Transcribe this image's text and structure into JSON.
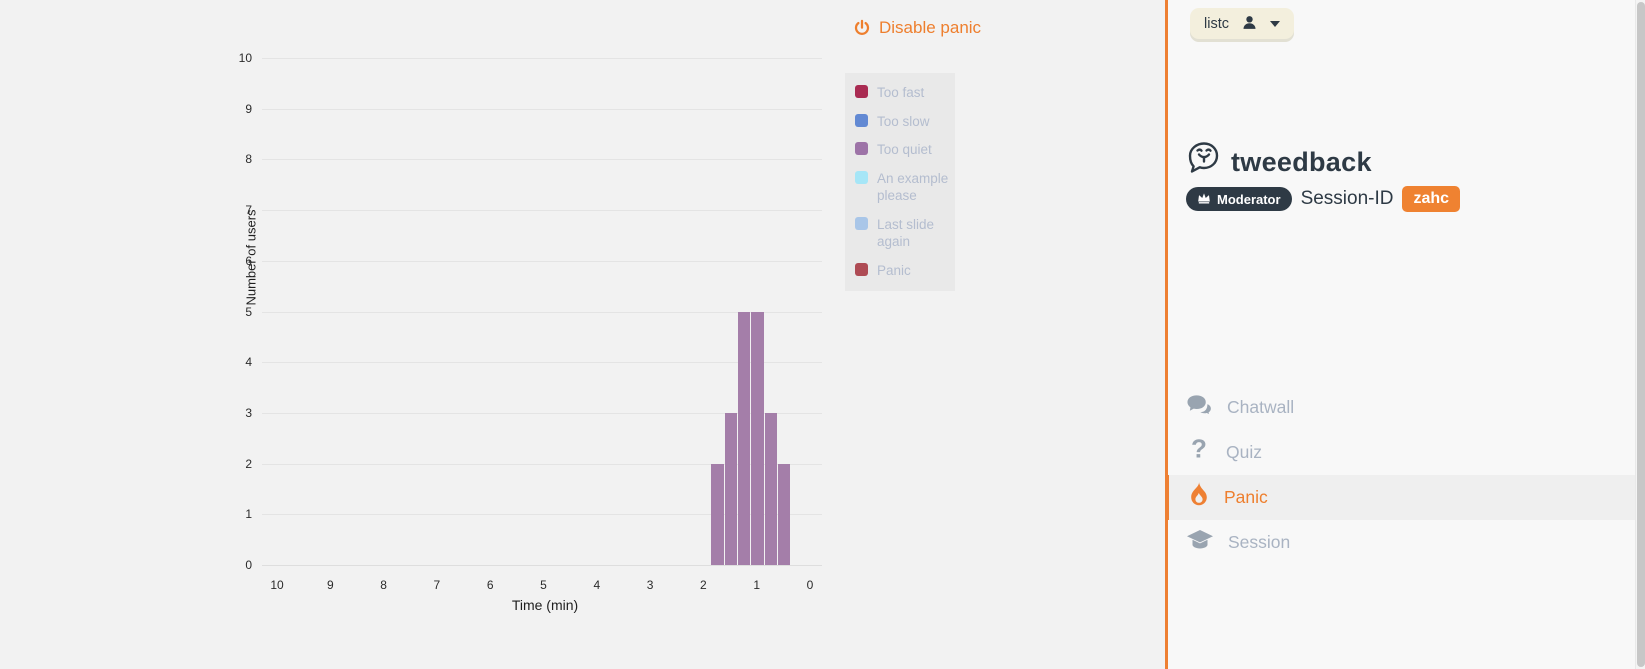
{
  "colors": {
    "accent_orange": "#ee7f2e",
    "badge_orange": "#ef8231",
    "navy": "#2e3a45",
    "bar_purple": "#a47ea9",
    "legend_bg": "#e9e9e9",
    "legend_text": "#b4bdcf",
    "nav_gray": "#a9b3c2",
    "nav_icon_gray": "#99a4b0"
  },
  "toolbar": {
    "disable_panic_label": "Disable panic",
    "icon": "power-icon"
  },
  "chart_data": {
    "type": "bar",
    "title": "",
    "xlabel": "Time (min)",
    "ylabel": "Number of users",
    "x_axis": {
      "min": 0,
      "max": 10,
      "reversed": true,
      "ticks": [
        10,
        9,
        8,
        7,
        6,
        5,
        4,
        3,
        2,
        1,
        0
      ]
    },
    "y_axis": {
      "min": 0,
      "max": 10,
      "ticks": [
        0,
        1,
        2,
        3,
        4,
        5,
        6,
        7,
        8,
        9,
        10
      ]
    },
    "grid": true,
    "legend_position": "right-top",
    "series": [
      {
        "name": "Too quiet",
        "color": "#a47ea9",
        "bars": [
          {
            "t_start": 1.85,
            "t_end": 1.6,
            "value": 2
          },
          {
            "t_start": 1.6,
            "t_end": 1.35,
            "value": 3
          },
          {
            "t_start": 1.35,
            "t_end": 1.1,
            "value": 5
          },
          {
            "t_start": 1.1,
            "t_end": 0.85,
            "value": 5
          },
          {
            "t_start": 0.85,
            "t_end": 0.6,
            "value": 3
          },
          {
            "t_start": 0.6,
            "t_end": 0.35,
            "value": 2
          }
        ]
      }
    ],
    "legend": [
      {
        "label": "Too fast",
        "color": "#a92b52"
      },
      {
        "label": "Too slow",
        "color": "#6289d3"
      },
      {
        "label": "Too quiet",
        "color": "#9d73a7"
      },
      {
        "label": "An example please",
        "color": "#a6e6f7"
      },
      {
        "label": "Last slide again",
        "color": "#a9c6e8"
      },
      {
        "label": "Panic",
        "color": "#ae4b54"
      }
    ]
  },
  "sidebar": {
    "user_button": {
      "label": "listc",
      "icon": "person-icon",
      "caret": "caret-down-icon"
    },
    "brand": {
      "name": "tweedback",
      "icon": "tweedback-bird-icon"
    },
    "session": {
      "moderator_label": "Moderator",
      "moderator_icon": "crown-icon",
      "session_id_label": "Session-ID",
      "session_id_value": "zahc"
    },
    "nav": [
      {
        "label": "Chatwall",
        "icon": "chat-bubbles-icon",
        "active": false
      },
      {
        "label": "Quiz",
        "icon": "question-icon",
        "active": false
      },
      {
        "label": "Panic",
        "icon": "flame-icon",
        "active": true
      },
      {
        "label": "Session",
        "icon": "graduation-cap-icon",
        "active": false
      }
    ]
  }
}
